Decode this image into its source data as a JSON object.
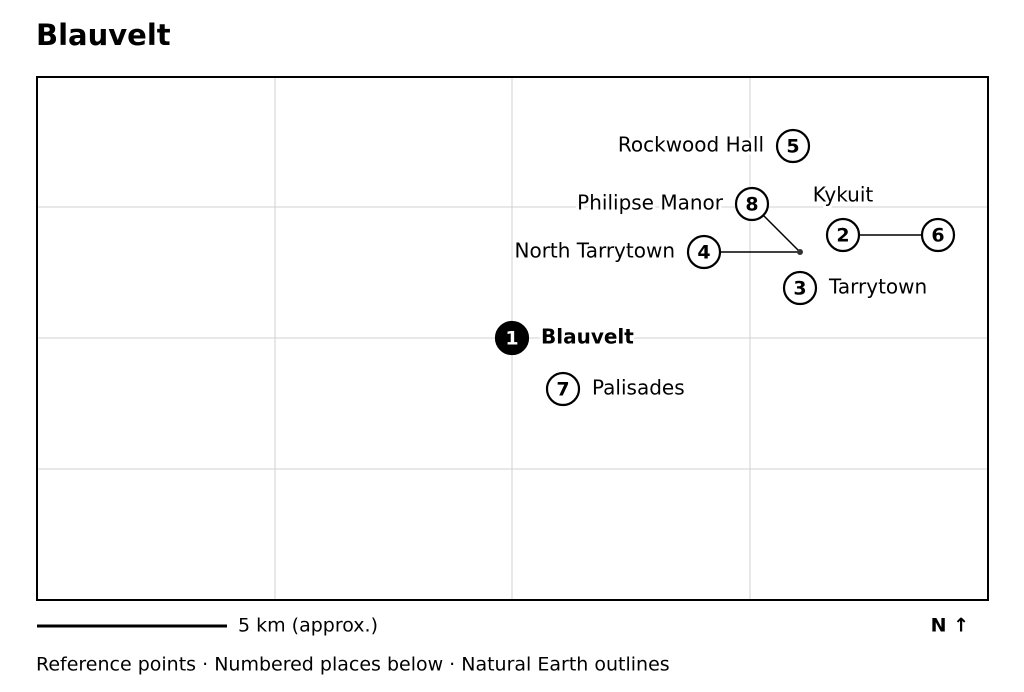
{
  "title": "Blauvelt",
  "places": [
    {
      "number": 1,
      "label": "Blauvelt"
    },
    {
      "number": 2,
      "label": "Kykuit"
    },
    {
      "number": 3,
      "label": "Tarrytown"
    },
    {
      "number": 4,
      "label": "North Tarrytown"
    },
    {
      "number": 5,
      "label": "Rockwood Hall"
    },
    {
      "number": 6
    },
    {
      "number": 7,
      "label": "Palisades"
    },
    {
      "number": 8,
      "label": "Philipse Manor"
    }
  ],
  "scale_label": "5 km (approx.)",
  "north_label": "N ↑",
  "footer": "Reference points · Numbered places below · Natural Earth outlines"
}
